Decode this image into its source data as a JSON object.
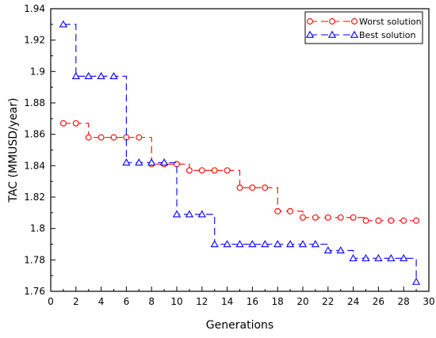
{
  "chart_data": {
    "type": "line",
    "title": "",
    "xlabel": "Generations",
    "ylabel": "TAC (MMUSD/year)",
    "xlim": [
      0,
      30
    ],
    "ylim": [
      1.76,
      1.94
    ],
    "x_ticks": [
      0,
      2,
      4,
      6,
      8,
      10,
      12,
      14,
      16,
      18,
      20,
      22,
      24,
      26,
      28,
      30
    ],
    "x_tick_labels": [
      "0",
      "2",
      "4",
      "6",
      "8",
      "10",
      "12",
      "14",
      "16",
      "18",
      "20",
      "22",
      "24",
      "26",
      "28",
      "30"
    ],
    "y_ticks": [
      1.76,
      1.78,
      1.8,
      1.82,
      1.84,
      1.86,
      1.88,
      1.9,
      1.92,
      1.94
    ],
    "y_tick_labels": [
      "1.76",
      "1.78",
      "1.8",
      "1.82",
      "1.84",
      "1.86",
      "1.88",
      "1.9",
      "1.92",
      "1.94"
    ],
    "grid": false,
    "legend_position": "top-right",
    "x": [
      1,
      2,
      3,
      4,
      5,
      6,
      7,
      8,
      9,
      10,
      11,
      12,
      13,
      14,
      15,
      16,
      17,
      18,
      19,
      20,
      21,
      22,
      23,
      24,
      25,
      26,
      27,
      28,
      29
    ],
    "series": [
      {
        "name": "Worst solution",
        "color": "#ff0000",
        "marker": "circle",
        "line_style": "dashed-step",
        "values": [
          1.867,
          1.867,
          1.858,
          1.858,
          1.858,
          1.858,
          1.858,
          1.841,
          1.841,
          1.841,
          1.837,
          1.837,
          1.837,
          1.837,
          1.826,
          1.826,
          1.826,
          1.811,
          1.811,
          1.807,
          1.807,
          1.807,
          1.807,
          1.807,
          1.805,
          1.805,
          1.805,
          1.805,
          1.805
        ]
      },
      {
        "name": "Best solution",
        "color": "#0000ff",
        "marker": "triangle",
        "line_style": "dashed-step",
        "values": [
          1.93,
          1.897,
          1.897,
          1.897,
          1.897,
          1.842,
          1.842,
          1.842,
          1.842,
          1.809,
          1.809,
          1.809,
          1.79,
          1.79,
          1.79,
          1.79,
          1.79,
          1.79,
          1.79,
          1.79,
          1.79,
          1.786,
          1.786,
          1.781,
          1.781,
          1.781,
          1.781,
          1.781,
          1.766
        ]
      }
    ]
  }
}
